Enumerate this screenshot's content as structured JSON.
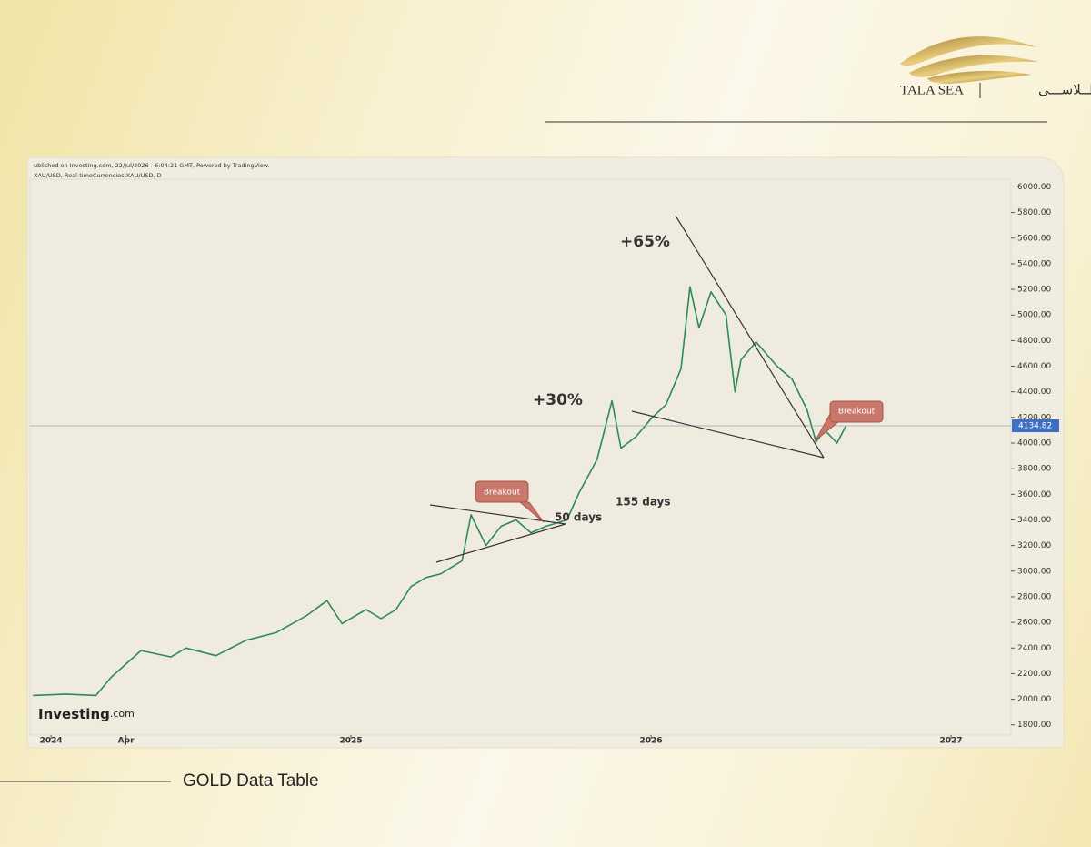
{
  "brand": {
    "name": "TALA SEA",
    "arabic": "طــلاســـى"
  },
  "footer": {
    "title": "GOLD Data Table"
  },
  "chart_data": {
    "type": "line",
    "source_note": "ublished on Investing.com, 22/Jul/2026 - 6:04:21 GMT, Powered by TradingView.",
    "symbol": "XAU/USD, Real-timeCurrencies:XAU/USD, D",
    "watermark_brand": "Investing",
    "watermark_suffix": ".com",
    "annotations": [
      "+65%",
      "+30%",
      "50 days",
      "155 days",
      "Breakout",
      "Breakout"
    ],
    "x": [
      2023.94,
      2024.05,
      2024.15,
      2024.2,
      2024.3,
      2024.4,
      2024.45,
      2024.55,
      2024.65,
      2024.75,
      2024.85,
      2024.92,
      2024.97,
      2025.05,
      2025.1,
      2025.15,
      2025.2,
      2025.25,
      2025.3,
      2025.37,
      2025.4,
      2025.45,
      2025.5,
      2025.55,
      2025.6,
      2025.65,
      2025.72,
      2025.76,
      2025.82,
      2025.87,
      2025.9,
      2025.95,
      2026.0,
      2026.05,
      2026.1,
      2026.13,
      2026.16,
      2026.2,
      2026.25,
      2026.28,
      2026.3,
      2026.35,
      2026.42,
      2026.47,
      2026.52,
      2026.55,
      2026.58,
      2026.62,
      2026.65
    ],
    "series": [
      {
        "name": "XAU/USD",
        "color": "#2e8b57",
        "values": [
          2030,
          2040,
          2030,
          2170,
          2380,
          2330,
          2400,
          2340,
          2460,
          2520,
          2650,
          2770,
          2590,
          2700,
          2630,
          2700,
          2880,
          2950,
          2980,
          3080,
          3440,
          3200,
          3350,
          3400,
          3300,
          3350,
          3400,
          3610,
          3870,
          4330,
          3960,
          4050,
          4190,
          4300,
          4580,
          5220,
          4900,
          5180,
          5000,
          4400,
          4650,
          4790,
          4600,
          4500,
          4260,
          4010,
          4100,
          4000,
          4134.82
        ]
      }
    ],
    "last_price": 4134.82,
    "last_price_color": "#3d6fc4",
    "xlim": [
      2023.93,
      2027.2
    ],
    "xticks": [
      {
        "value": 2024,
        "label": "2024"
      },
      {
        "value": 2024.25,
        "label": "Apr"
      },
      {
        "value": 2025,
        "label": "2025"
      },
      {
        "value": 2026,
        "label": "2026"
      },
      {
        "value": 2027,
        "label": "2027"
      }
    ],
    "ylim": [
      1720,
      6060
    ],
    "yticks": [
      {
        "value": 1800,
        "label": "1800.00"
      },
      {
        "value": 2000,
        "label": "2000.00"
      },
      {
        "value": 2200,
        "label": "2200.00"
      },
      {
        "value": 2400,
        "label": "2400.00"
      },
      {
        "value": 2600,
        "label": "2600.00"
      },
      {
        "value": 2800,
        "label": "2800.00"
      },
      {
        "value": 3000,
        "label": "3000.00"
      },
      {
        "value": 3200,
        "label": "3200.00"
      },
      {
        "value": 3400,
        "label": "3400.00"
      },
      {
        "value": 3600,
        "label": "3600.00"
      },
      {
        "value": 3800,
        "label": "3800.00"
      },
      {
        "value": 4000,
        "label": "4000.00"
      },
      {
        "value": 4200,
        "label": "4200.00"
      },
      {
        "value": 4400,
        "label": "4400.00"
      },
      {
        "value": 4600,
        "label": "4600.00"
      },
      {
        "value": 4800,
        "label": "4800.00"
      },
      {
        "value": 5000,
        "label": "5000.00"
      },
      {
        "value": 5200,
        "label": "5200.00"
      },
      {
        "value": 5400,
        "label": "5400.00"
      },
      {
        "value": 5600,
        "label": "5600.00"
      },
      {
        "value": 5800,
        "label": "5800.00"
      },
      {
        "value": 6000,
        "label": "6000.00"
      }
    ],
    "grid": false,
    "y_axis_side": "right"
  }
}
